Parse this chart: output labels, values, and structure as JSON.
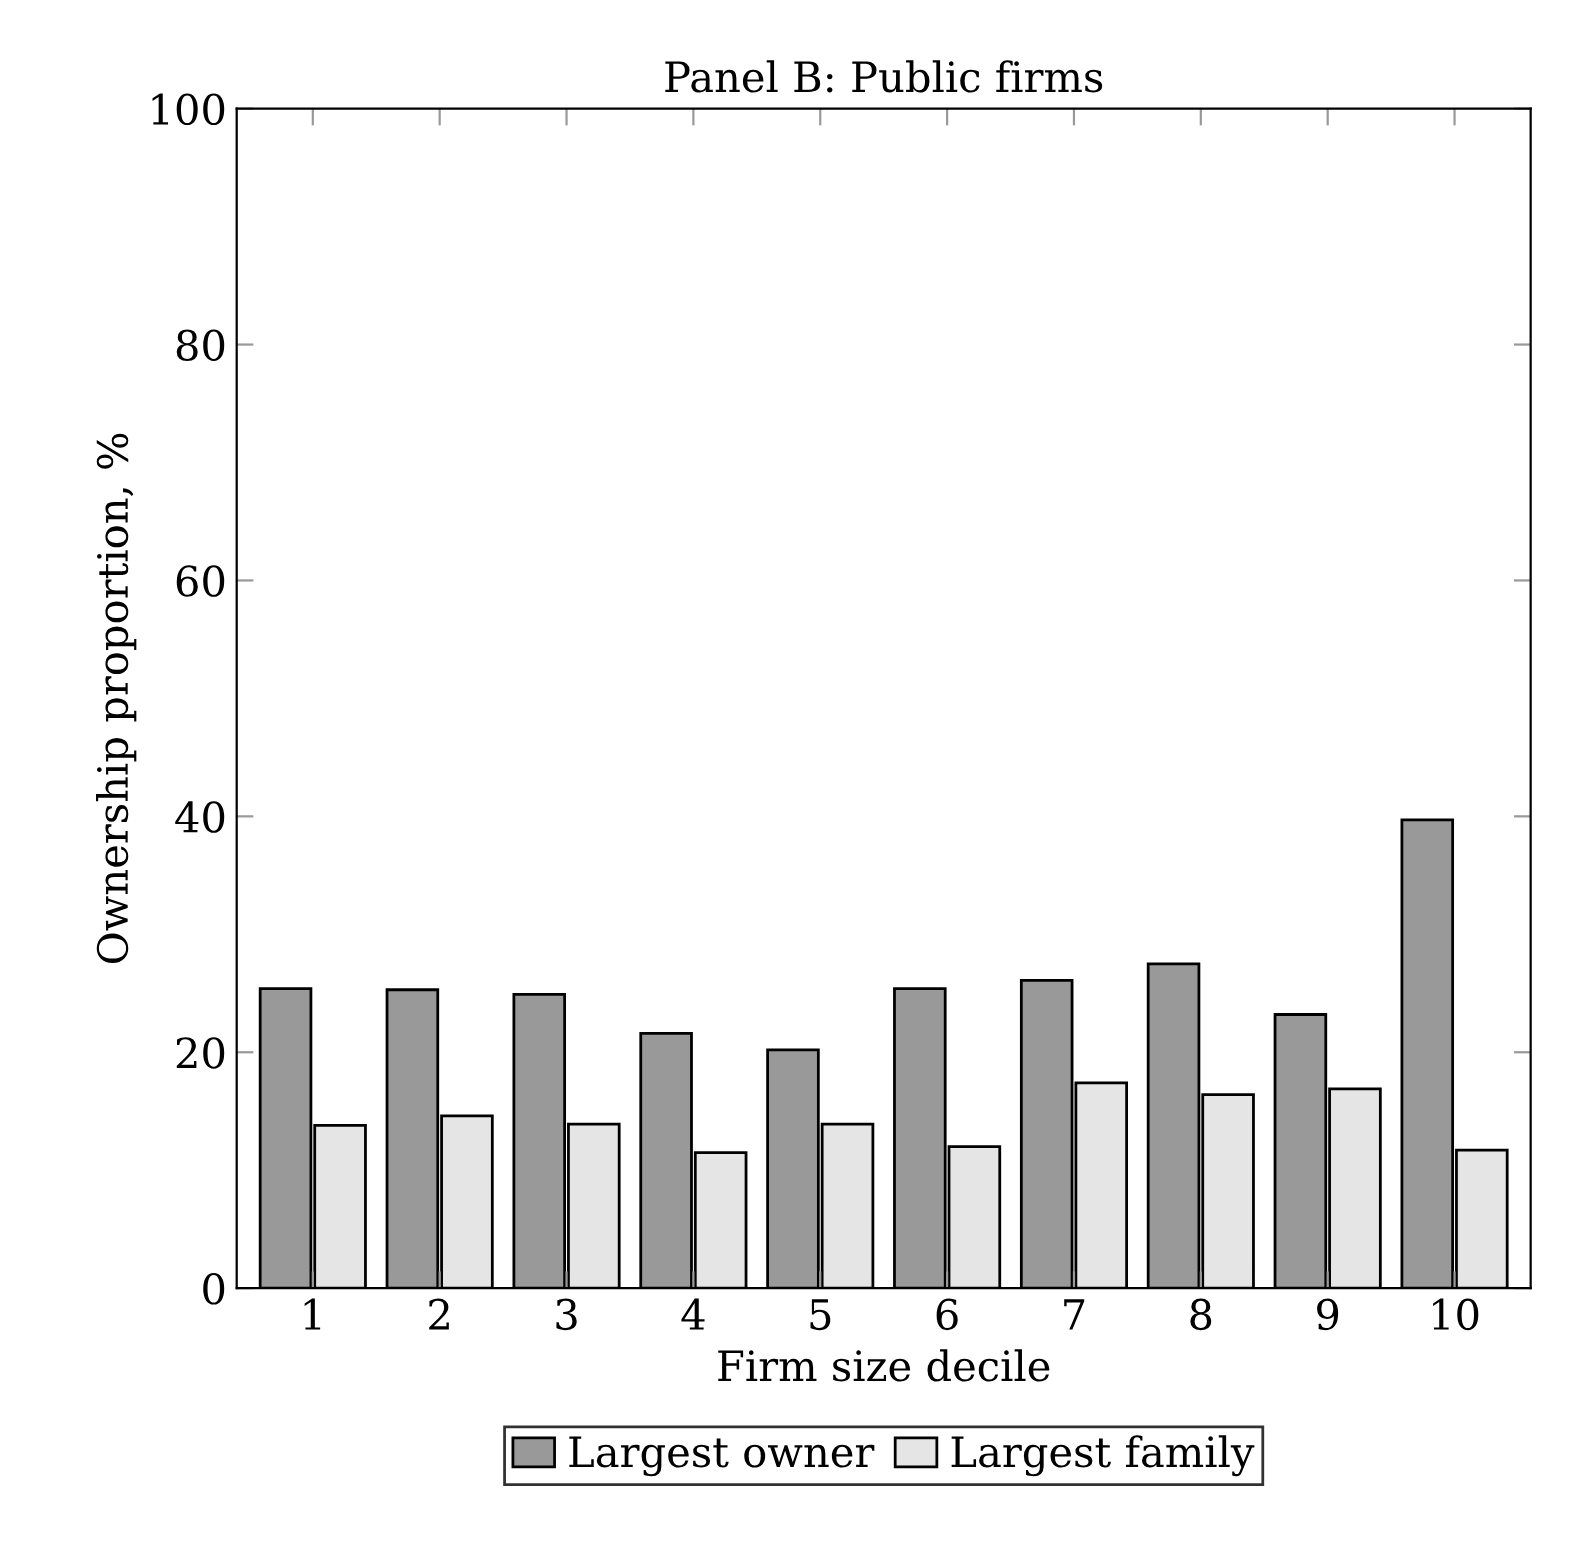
{
  "chart_data": {
    "type": "bar",
    "title": "Panel B: Public firms",
    "xlabel": "Firm size decile",
    "ylabel": "Ownership proportion, %",
    "categories": [
      "1",
      "2",
      "3",
      "4",
      "5",
      "6",
      "7",
      "8",
      "9",
      "10"
    ],
    "series": [
      {
        "name": "Largest owner",
        "color": "#999999",
        "values": [
          25.4,
          25.3,
          24.9,
          21.6,
          20.2,
          25.4,
          26.1,
          27.5,
          23.2,
          39.7
        ]
      },
      {
        "name": "Largest family",
        "color": "#e5e5e5",
        "values": [
          13.8,
          14.6,
          13.9,
          11.5,
          13.9,
          12.0,
          17.4,
          16.4,
          16.9,
          11.7
        ]
      }
    ],
    "ylim": [
      0,
      100
    ],
    "yticks": [
      0,
      20,
      40,
      60,
      80,
      100
    ],
    "grid": false,
    "legend": "bottom"
  }
}
